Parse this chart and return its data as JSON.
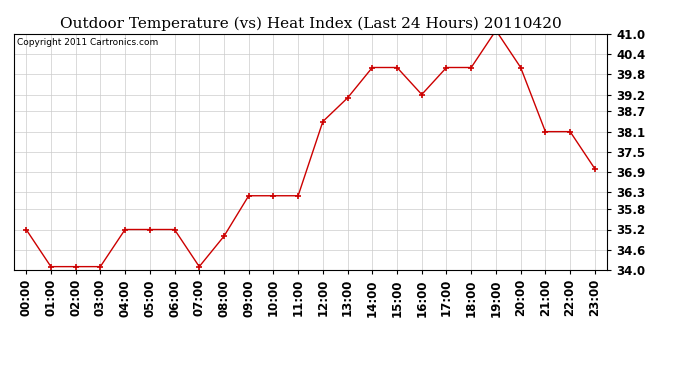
{
  "title": "Outdoor Temperature (vs) Heat Index (Last 24 Hours) 20110420",
  "copyright_text": "Copyright 2011 Cartronics.com",
  "hours": [
    "00:00",
    "01:00",
    "02:00",
    "03:00",
    "04:00",
    "05:00",
    "06:00",
    "07:00",
    "08:00",
    "09:00",
    "10:00",
    "11:00",
    "12:00",
    "13:00",
    "14:00",
    "15:00",
    "16:00",
    "17:00",
    "18:00",
    "19:00",
    "20:00",
    "21:00",
    "22:00",
    "23:00"
  ],
  "values": [
    35.2,
    34.1,
    34.1,
    34.1,
    35.2,
    35.2,
    35.2,
    34.1,
    35.0,
    36.2,
    36.2,
    36.2,
    38.4,
    39.1,
    40.0,
    40.0,
    39.2,
    40.0,
    40.0,
    41.1,
    40.0,
    38.1,
    38.1,
    37.0
  ],
  "line_color": "#cc0000",
  "marker": "+",
  "marker_size": 5,
  "marker_color": "#cc0000",
  "bg_color": "#ffffff",
  "plot_bg_color": "#ffffff",
  "grid_color": "#cccccc",
  "title_fontsize": 11,
  "copyright_fontsize": 6.5,
  "ylim": [
    34.0,
    41.0
  ],
  "yticks": [
    34.0,
    34.6,
    35.2,
    35.8,
    36.3,
    36.9,
    37.5,
    38.1,
    38.7,
    39.2,
    39.8,
    40.4,
    41.0
  ],
  "tick_fontsize": 8.5
}
